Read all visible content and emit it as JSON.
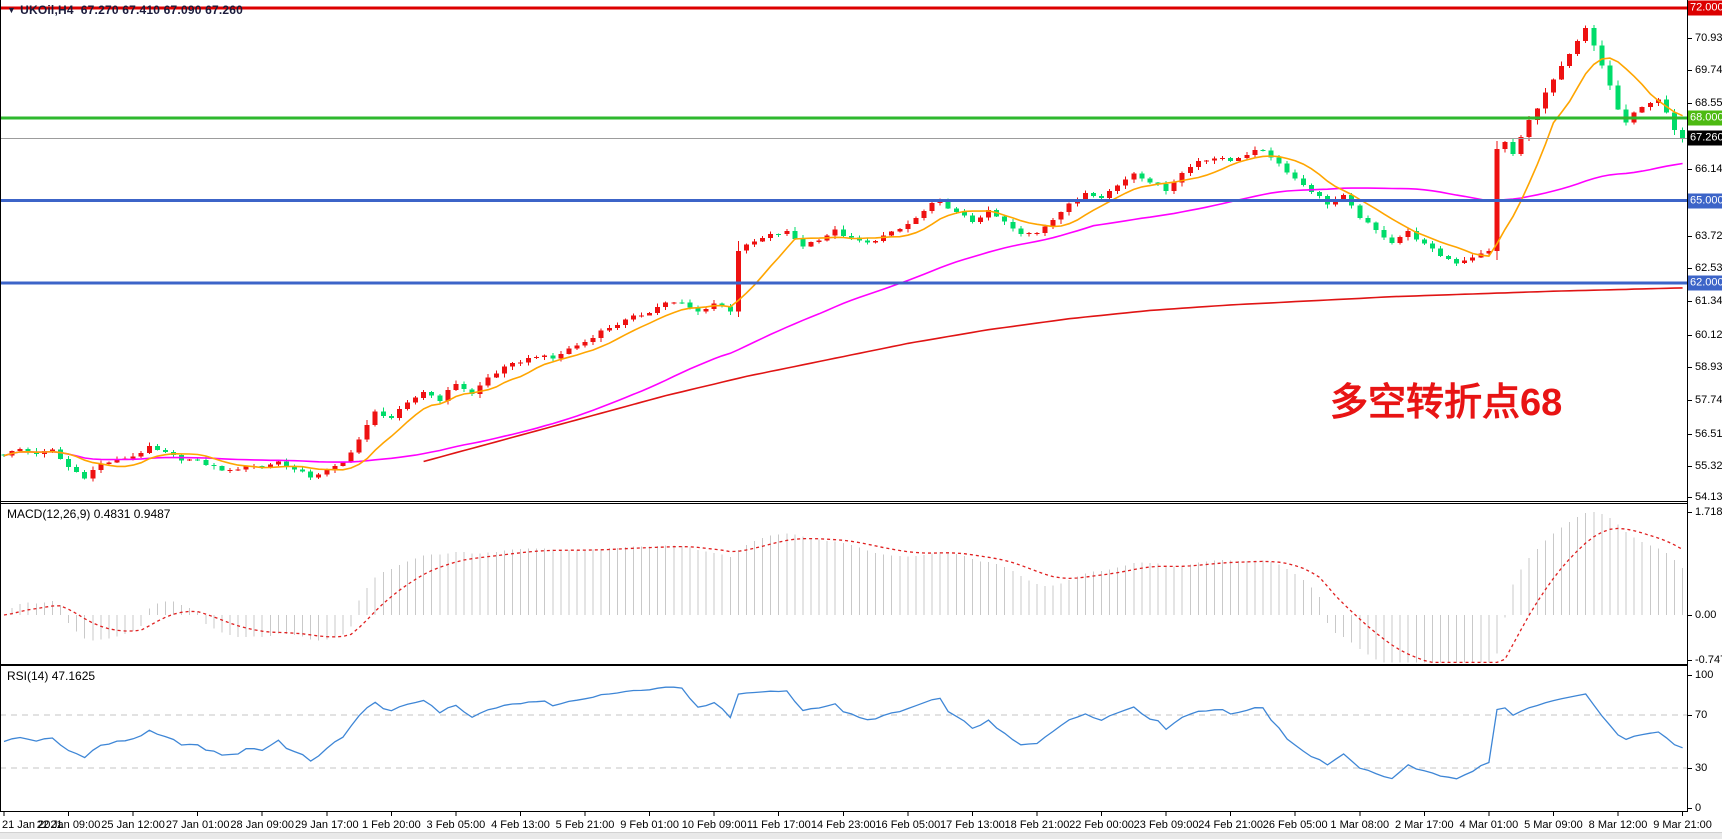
{
  "symbol_bar": {
    "marker": "▼",
    "symbol": "UKOil,H4",
    "ohlc": "67.270 67.410 67.090 67.260"
  },
  "annotation": {
    "text": "多空转折点68",
    "color": "#E81414"
  },
  "chart_data": {
    "type": "candlestick",
    "symbol": "UKOil",
    "timeframe": "H4",
    "bar_count": 209,
    "x_tick_every": 8,
    "x_labels": [
      "21 Jan 2021",
      "22 Jan 09:00",
      "25 Jan 12:00",
      "27 Jan 01:00",
      "28 Jan 09:00",
      "29 Jan 17:00",
      "1 Feb 20:00",
      "3 Feb 05:00",
      "4 Feb 13:00",
      "5 Feb 21:00",
      "9 Feb 01:00",
      "10 Feb 09:00",
      "11 Feb 17:00",
      "14 Feb 23:00",
      "16 Feb 05:00",
      "17 Feb 13:00",
      "18 Feb 21:00",
      "22 Feb 00:00",
      "23 Feb 09:00",
      "24 Feb 21:00",
      "26 Feb 05:00",
      "1 Mar 08:00",
      "2 Mar 17:00",
      "4 Mar 01:00",
      "5 Mar 09:00",
      "8 Mar 12:00",
      "9 Mar 21:00"
    ],
    "price_axis": {
      "min": 54.1,
      "max": 72.3,
      "tick_labels": [
        "70.935",
        "69.745",
        "68.555",
        "66.140",
        "63.725",
        "62.535",
        "61.345",
        "60.120",
        "58.930",
        "57.740",
        "56.515",
        "55.325",
        "54.135"
      ]
    },
    "badges": [
      {
        "label": "72.000",
        "price": 72.0,
        "bg": "#DC0000"
      },
      {
        "label": "68.000",
        "price": 68.0,
        "bg": "#4DBA12"
      },
      {
        "label": "67.260",
        "price": 67.26,
        "bg": "#000000"
      },
      {
        "label": "65.000",
        "price": 65.0,
        "bg": "#3C64C8"
      },
      {
        "label": "62.000",
        "price": 62.0,
        "bg": "#3C64C8"
      }
    ],
    "hlines": [
      {
        "price": 72.0,
        "color": "#DC0000",
        "w": 3
      },
      {
        "price": 68.0,
        "color": "#2EB82E",
        "w": 3
      },
      {
        "price": 67.26,
        "color": "#9C9C9C",
        "w": 1
      },
      {
        "price": 65.0,
        "color": "#3C64C8",
        "w": 3
      },
      {
        "price": 62.0,
        "color": "#3C64C8",
        "w": 3
      }
    ],
    "candle_up_color": "#EE1111",
    "candle_down_color": "#00DC6A",
    "close_anchors": [
      [
        0,
        55.75
      ],
      [
        2,
        55.95
      ],
      [
        4,
        55.8
      ],
      [
        6,
        55.9
      ],
      [
        8,
        55.3
      ],
      [
        10,
        54.95
      ],
      [
        12,
        55.4
      ],
      [
        14,
        55.55
      ],
      [
        16,
        55.7
      ],
      [
        18,
        56.0
      ],
      [
        20,
        55.8
      ],
      [
        22,
        55.6
      ],
      [
        24,
        55.5
      ],
      [
        26,
        55.3
      ],
      [
        28,
        55.15
      ],
      [
        30,
        55.35
      ],
      [
        32,
        55.3
      ],
      [
        34,
        55.5
      ],
      [
        36,
        55.2
      ],
      [
        38,
        54.95
      ],
      [
        40,
        55.15
      ],
      [
        42,
        55.45
      ],
      [
        44,
        56.3
      ],
      [
        46,
        57.3
      ],
      [
        48,
        57.1
      ],
      [
        50,
        57.6
      ],
      [
        52,
        58.05
      ],
      [
        54,
        57.75
      ],
      [
        56,
        58.35
      ],
      [
        58,
        57.95
      ],
      [
        60,
        58.55
      ],
      [
        62,
        58.9
      ],
      [
        64,
        59.15
      ],
      [
        66,
        59.35
      ],
      [
        68,
        59.25
      ],
      [
        70,
        59.6
      ],
      [
        72,
        59.85
      ],
      [
        74,
        60.25
      ],
      [
        76,
        60.5
      ],
      [
        78,
        60.75
      ],
      [
        80,
        60.95
      ],
      [
        82,
        61.3
      ],
      [
        84,
        61.25
      ],
      [
        86,
        60.95
      ],
      [
        88,
        61.25
      ],
      [
        90,
        61.0
      ],
      [
        91,
        63.2
      ],
      [
        93,
        63.5
      ],
      [
        95,
        63.75
      ],
      [
        97,
        63.85
      ],
      [
        99,
        63.35
      ],
      [
        101,
        63.6
      ],
      [
        103,
        63.9
      ],
      [
        105,
        63.6
      ],
      [
        107,
        63.45
      ],
      [
        109,
        63.7
      ],
      [
        111,
        63.95
      ],
      [
        113,
        64.35
      ],
      [
        115,
        64.85
      ],
      [
        116,
        65.0
      ],
      [
        118,
        64.55
      ],
      [
        120,
        64.25
      ],
      [
        122,
        64.6
      ],
      [
        124,
        64.2
      ],
      [
        126,
        63.75
      ],
      [
        128,
        63.85
      ],
      [
        130,
        64.35
      ],
      [
        132,
        64.85
      ],
      [
        134,
        65.3
      ],
      [
        136,
        65.15
      ],
      [
        138,
        65.55
      ],
      [
        140,
        66.0
      ],
      [
        142,
        65.7
      ],
      [
        144,
        65.4
      ],
      [
        146,
        66.0
      ],
      [
        148,
        66.45
      ],
      [
        150,
        66.55
      ],
      [
        152,
        66.45
      ],
      [
        154,
        66.7
      ],
      [
        156,
        66.85
      ],
      [
        158,
        66.35
      ],
      [
        160,
        65.8
      ],
      [
        162,
        65.35
      ],
      [
        164,
        64.9
      ],
      [
        166,
        65.15
      ],
      [
        168,
        64.4
      ],
      [
        170,
        63.9
      ],
      [
        172,
        63.5
      ],
      [
        174,
        63.85
      ],
      [
        176,
        63.4
      ],
      [
        178,
        63.0
      ],
      [
        180,
        62.75
      ],
      [
        182,
        62.95
      ],
      [
        184,
        63.15
      ],
      [
        185,
        66.9
      ],
      [
        186,
        67.1
      ],
      [
        187,
        66.7
      ],
      [
        188,
        67.3
      ],
      [
        189,
        67.9
      ],
      [
        190,
        68.4
      ],
      [
        192,
        69.4
      ],
      [
        194,
        70.3
      ],
      [
        196,
        71.25
      ],
      [
        197,
        70.6
      ],
      [
        198,
        69.9
      ],
      [
        199,
        69.2
      ],
      [
        200,
        68.3
      ],
      [
        201,
        67.85
      ],
      [
        202,
        68.15
      ],
      [
        204,
        68.6
      ],
      [
        205,
        68.7
      ],
      [
        206,
        68.15
      ],
      [
        207,
        67.55
      ],
      [
        208,
        67.26
      ]
    ],
    "ma": {
      "fast_period": 8,
      "fast_color": "#FFA500",
      "mid_period": 45,
      "mid_color": "#FF00FF",
      "slow_color": "#E01414",
      "slow_anchors": [
        [
          52,
          55.5
        ],
        [
          62,
          56.3
        ],
        [
          72,
          57.1
        ],
        [
          82,
          57.9
        ],
        [
          92,
          58.6
        ],
        [
          102,
          59.2
        ],
        [
          112,
          59.8
        ],
        [
          122,
          60.3
        ],
        [
          132,
          60.7
        ],
        [
          142,
          61.0
        ],
        [
          152,
          61.2
        ],
        [
          162,
          61.35
        ],
        [
          172,
          61.5
        ],
        [
          182,
          61.6
        ],
        [
          192,
          61.7
        ],
        [
          208,
          61.82
        ]
      ]
    },
    "macd": {
      "label": "MACD(12,26,9)",
      "display_values": "0.4831 0.9487",
      "fast": 12,
      "slow": 26,
      "signal": 9,
      "axis_labels": [
        {
          "v": 1.718,
          "t": "1.718"
        },
        {
          "v": 0,
          "t": "0.00"
        },
        {
          "v": -0.7475,
          "t": "-0.7475"
        }
      ],
      "axis_min": -0.8,
      "axis_max": 1.85,
      "hist_color": "#C9C9C9",
      "signal_color": "#E02020"
    },
    "rsi": {
      "label": "RSI(14)",
      "display_value": "47.1625",
      "period": 14,
      "axis_labels": [
        {
          "v": 100,
          "t": "100"
        },
        {
          "v": 70,
          "t": "70"
        },
        {
          "v": 30,
          "t": "30"
        },
        {
          "v": 0,
          "t": "0"
        }
      ],
      "levels": [
        70,
        30
      ],
      "level_color": "#C6C6C6",
      "color": "#3E86D6"
    }
  }
}
